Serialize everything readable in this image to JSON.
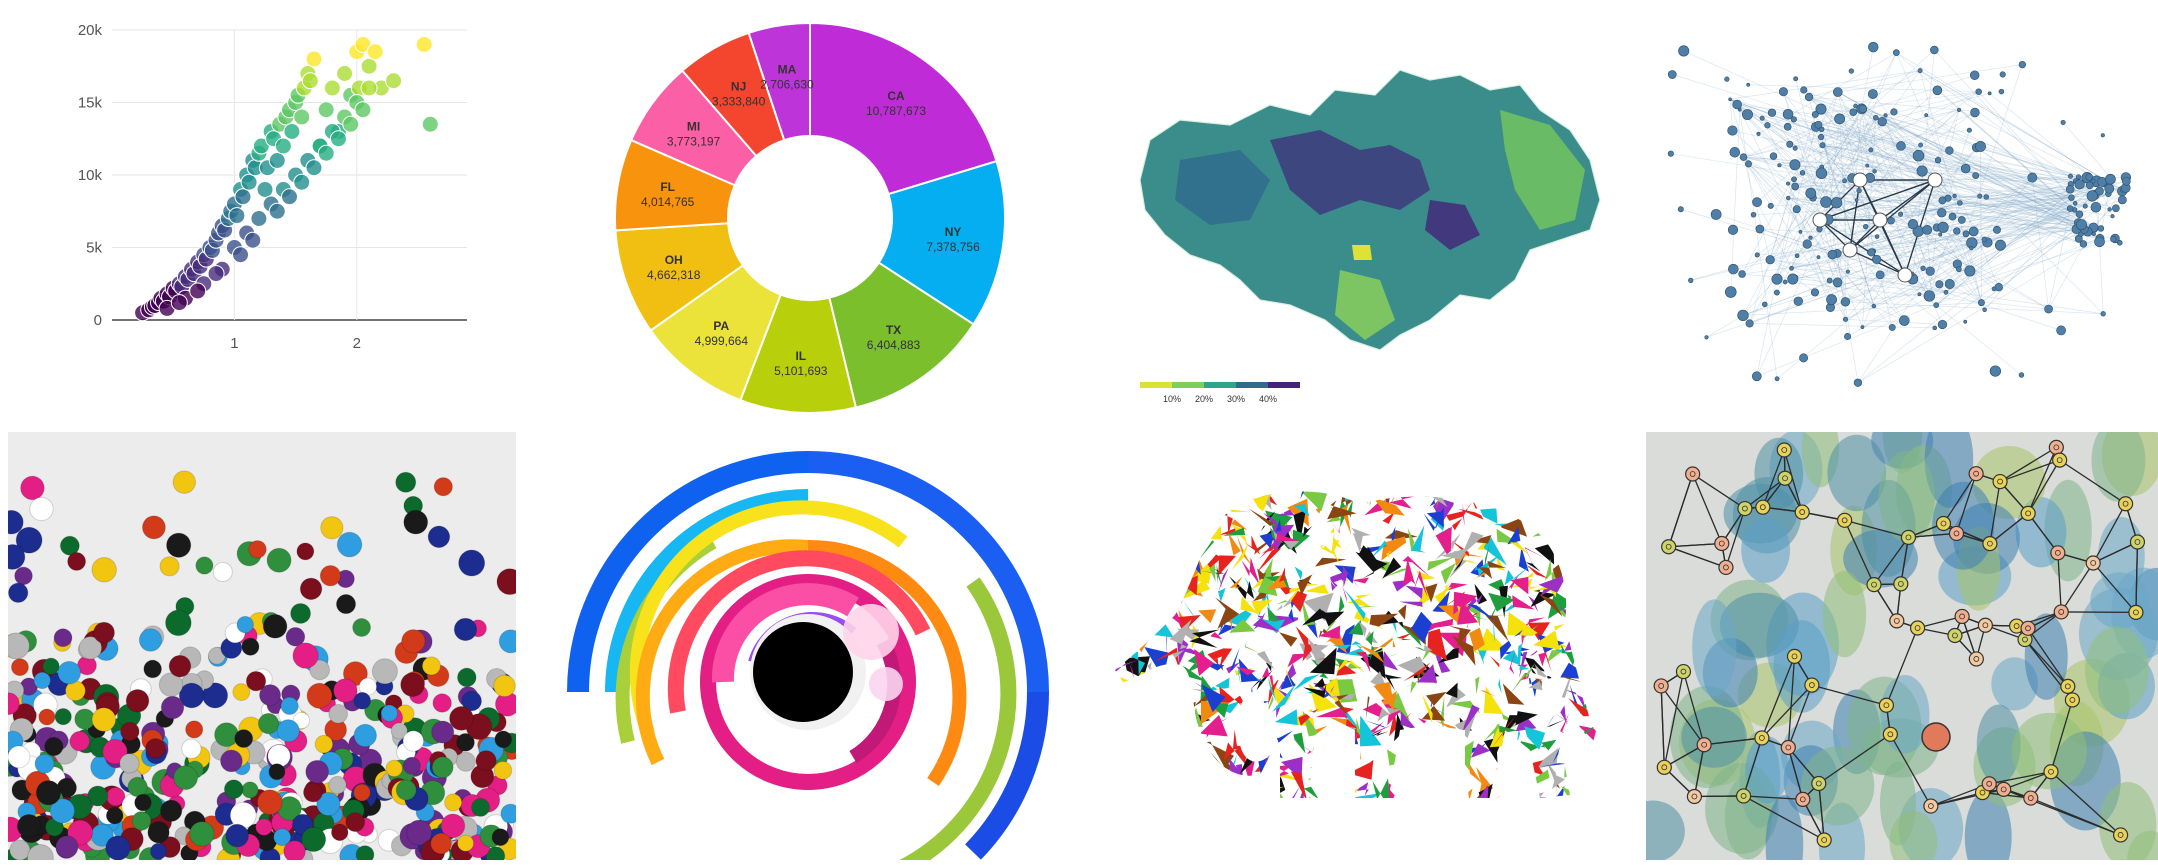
{
  "chart_data": [
    {
      "type": "scatter",
      "title": "",
      "xlabel": "",
      "ylabel": "",
      "x_ticks": [
        "1",
        "2"
      ],
      "y_ticks": [
        "0",
        "5k",
        "10k",
        "15k",
        "20k"
      ],
      "xlim": [
        0,
        2.9
      ],
      "ylim": [
        0,
        20000
      ],
      "grid": true,
      "colorscale": "viridis",
      "series": [
        {
          "x": [
            0.25,
            0.3,
            0.33,
            0.35,
            0.38,
            0.4,
            0.42,
            0.45,
            0.47,
            0.5,
            0.52,
            0.55,
            0.57,
            0.6,
            0.62,
            0.65,
            0.67,
            0.7,
            0.72,
            0.75,
            0.77,
            0.8,
            0.82,
            0.85,
            0.87,
            0.9,
            0.92,
            0.95,
            0.97,
            1.0,
            1.02,
            1.05,
            1.07,
            1.1,
            1.12,
            1.15,
            1.17,
            1.2,
            1.22,
            1.25,
            1.27,
            1.3,
            1.32,
            1.35,
            1.37,
            1.4,
            1.42,
            1.45,
            1.47,
            1.5,
            1.52,
            1.55,
            1.57,
            1.6,
            1.62,
            1.65,
            1.7,
            1.75,
            1.8,
            1.85,
            1.9,
            1.95,
            2.0,
            2.02,
            2.05,
            2.1,
            2.15,
            2.2,
            2.3,
            2.55,
            2.6,
            0.45,
            0.6,
            0.75,
            0.9,
            1.0,
            1.1,
            1.2,
            1.3,
            1.4,
            1.5,
            1.6,
            1.7,
            1.8,
            1.9,
            2.0,
            2.1,
            0.55,
            0.7,
            0.85,
            1.05,
            1.15,
            1.35,
            1.45,
            1.55,
            1.65,
            1.75,
            1.85,
            1.95,
            2.05
          ],
          "y": [
            500,
            700,
            900,
            1000,
            1200,
            1500,
            1300,
            1800,
            1600,
            2200,
            2000,
            2500,
            2300,
            3000,
            2800,
            3500,
            3200,
            4000,
            3700,
            4500,
            4200,
            5000,
            4800,
            5500,
            6000,
            6500,
            6200,
            7000,
            7500,
            8000,
            7200,
            9000,
            8500,
            10000,
            9500,
            11000,
            10500,
            11500,
            12000,
            9000,
            10500,
            13000,
            12500,
            11000,
            13500,
            12000,
            14000,
            14500,
            13000,
            15000,
            15500,
            14000,
            16000,
            17000,
            16500,
            18000,
            12000,
            14500,
            16000,
            13000,
            17000,
            15500,
            18500,
            16000,
            19000,
            17500,
            18500,
            16000,
            16500,
            19000,
            13500,
            800,
            1500,
            2500,
            3500,
            5000,
            6000,
            7000,
            8000,
            9000,
            10000,
            11000,
            12000,
            13000,
            14000,
            15000,
            16000,
            1200,
            2000,
            3200,
            4500,
            5500,
            7500,
            8500,
            9500,
            10500,
            11500,
            12500,
            13500,
            14500
          ]
        }
      ]
    },
    {
      "type": "pie",
      "title": "",
      "labels": [
        "CA",
        "NY",
        "TX",
        "IL",
        "PA",
        "OH",
        "FL",
        "MI",
        "NJ",
        "MA"
      ],
      "values": [
        10787673,
        7378756,
        6404883,
        5101693,
        4999664,
        4662318,
        4014765,
        3773197,
        3333840,
        2706630
      ],
      "value_labels": [
        "10,787,673",
        "7,378,756",
        "6,404,883",
        "5,101,693",
        "4,999,664",
        "4,662,318",
        "4,014,765",
        "3,773,197",
        "3,333,840",
        "2,706,630"
      ],
      "colors": [
        "#bf2bd6",
        "#04aef1",
        "#7bbf2c",
        "#b8cf0c",
        "#ece33a",
        "#f1bf12",
        "#f7930c",
        "#fb5fa5",
        "#f4452f",
        "#bd35d8"
      ],
      "hole": 0.5
    }
  ],
  "choropleth": {
    "legend_ticks": [
      "10%",
      "20%",
      "30%",
      "40%"
    ],
    "legend_colors": [
      "#dbe234",
      "#7ccf59",
      "#2ea58b",
      "#306a8e",
      "#45237a"
    ]
  },
  "icons": {
    "network_graph": "network-graph-icon",
    "dot_painting": "dot-painting-icon",
    "radial_arcs": "radial-arcs-icon",
    "elephant": "elephant-mosaic-icon",
    "watercolor_network": "watercolor-network-icon"
  }
}
